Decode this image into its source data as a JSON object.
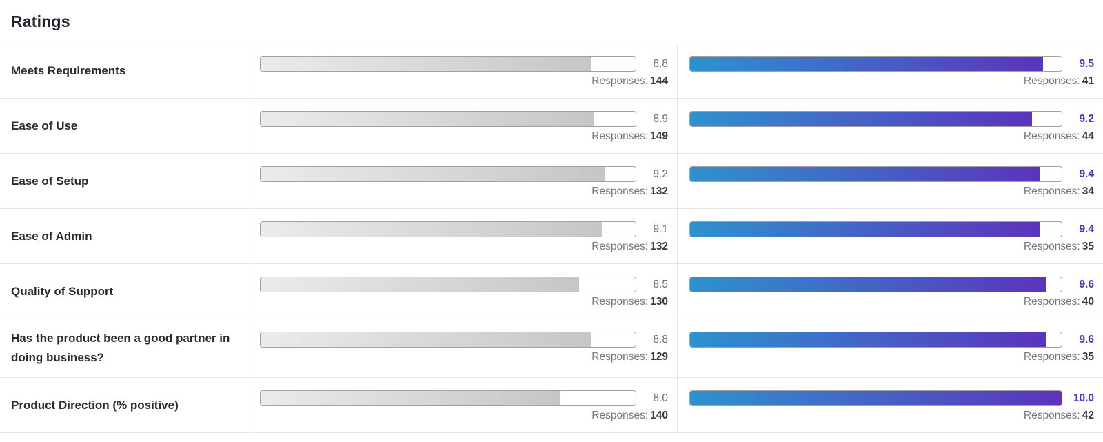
{
  "title": "Ratings",
  "responses_label": "Responses:",
  "colors": {
    "bar_gradient_start": "#2E92CF",
    "bar_gradient_end": "#5C33BB",
    "gray_bar_start": "#EBEBEB",
    "gray_bar_end": "#C6C6C6",
    "accent_value_text": "#4E38AE"
  },
  "rows": [
    {
      "label": "Meets Requirements",
      "left": {
        "value": "8.8",
        "responses": "144"
      },
      "right": {
        "value": "9.5",
        "responses": "41"
      }
    },
    {
      "label": "Ease of Use",
      "left": {
        "value": "8.9",
        "responses": "149"
      },
      "right": {
        "value": "9.2",
        "responses": "44"
      }
    },
    {
      "label": "Ease of Setup",
      "left": {
        "value": "9.2",
        "responses": "132"
      },
      "right": {
        "value": "9.4",
        "responses": "34"
      }
    },
    {
      "label": "Ease of Admin",
      "left": {
        "value": "9.1",
        "responses": "132"
      },
      "right": {
        "value": "9.4",
        "responses": "35"
      }
    },
    {
      "label": "Quality of Support",
      "left": {
        "value": "8.5",
        "responses": "130"
      },
      "right": {
        "value": "9.6",
        "responses": "40"
      }
    },
    {
      "label": "Has the product been a good partner in doing business?",
      "left": {
        "value": "8.8",
        "responses": "129"
      },
      "right": {
        "value": "9.6",
        "responses": "35"
      }
    },
    {
      "label": "Product Direction (% positive)",
      "left": {
        "value": "8.0",
        "responses": "140"
      },
      "right": {
        "value": "10.0",
        "responses": "42"
      }
    }
  ],
  "chart_data": {
    "type": "bar",
    "title": "Ratings",
    "categories": [
      "Meets Requirements",
      "Ease of Use",
      "Ease of Setup",
      "Ease of Admin",
      "Quality of Support",
      "Has the product been a good partner in doing business?",
      "Product Direction (% positive)"
    ],
    "value_range": [
      0,
      10
    ],
    "series": [
      {
        "name": "left_column_gray_bars",
        "values": [
          8.8,
          8.9,
          9.2,
          9.1,
          8.5,
          8.8,
          8.0
        ],
        "responses": [
          144,
          149,
          132,
          132,
          130,
          129,
          140
        ]
      },
      {
        "name": "right_column_gradient_bars",
        "values": [
          9.5,
          9.2,
          9.4,
          9.4,
          9.6,
          9.6,
          10.0
        ],
        "responses": [
          41,
          44,
          34,
          35,
          40,
          35,
          42
        ]
      }
    ],
    "legend_position": "none",
    "grid": false
  }
}
